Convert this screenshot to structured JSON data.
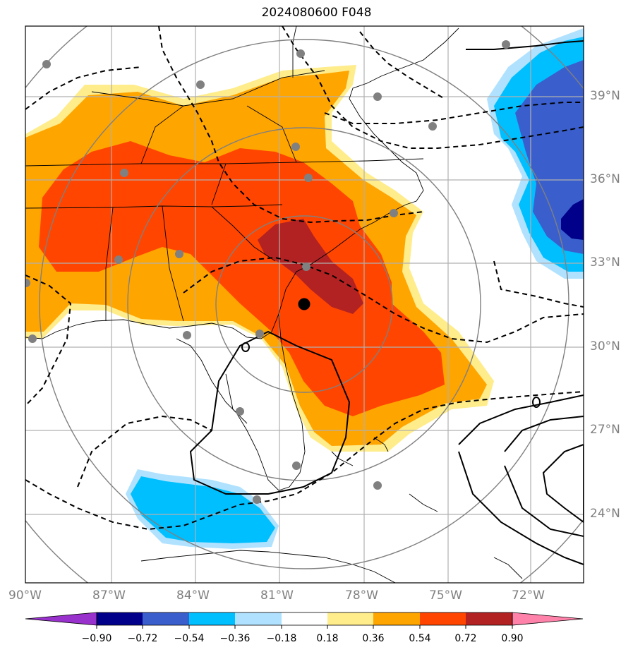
{
  "title": "2024080600 F048",
  "longitude_ticks": [
    "90°W",
    "87°W",
    "84°W",
    "81°W",
    "78°W",
    "75°W",
    "72°W"
  ],
  "latitude_ticks": [
    "39°N",
    "36°N",
    "33°N",
    "30°N",
    "27°N",
    "24°N"
  ],
  "colorbar": {
    "labels": [
      "−0.90",
      "−0.72",
      "−0.54",
      "−0.36",
      "−0.18",
      "0.18",
      "0.36",
      "0.54",
      "0.72",
      "0.90"
    ],
    "colors": [
      "#9932cc",
      "#00008b",
      "#3a5fcd",
      "#00bfff",
      "#b0e2ff",
      "#ffffff",
      "#ffec8b",
      "#ffa500",
      "#ff4500",
      "#b22222",
      "#ff82ab"
    ]
  },
  "map_layers": {
    "fill": "shaded correlation field",
    "contours": "black solid/dashed lines",
    "range_rings": "gray concentric circles",
    "stations": "gray dots",
    "center_marker": "black dot"
  }
}
